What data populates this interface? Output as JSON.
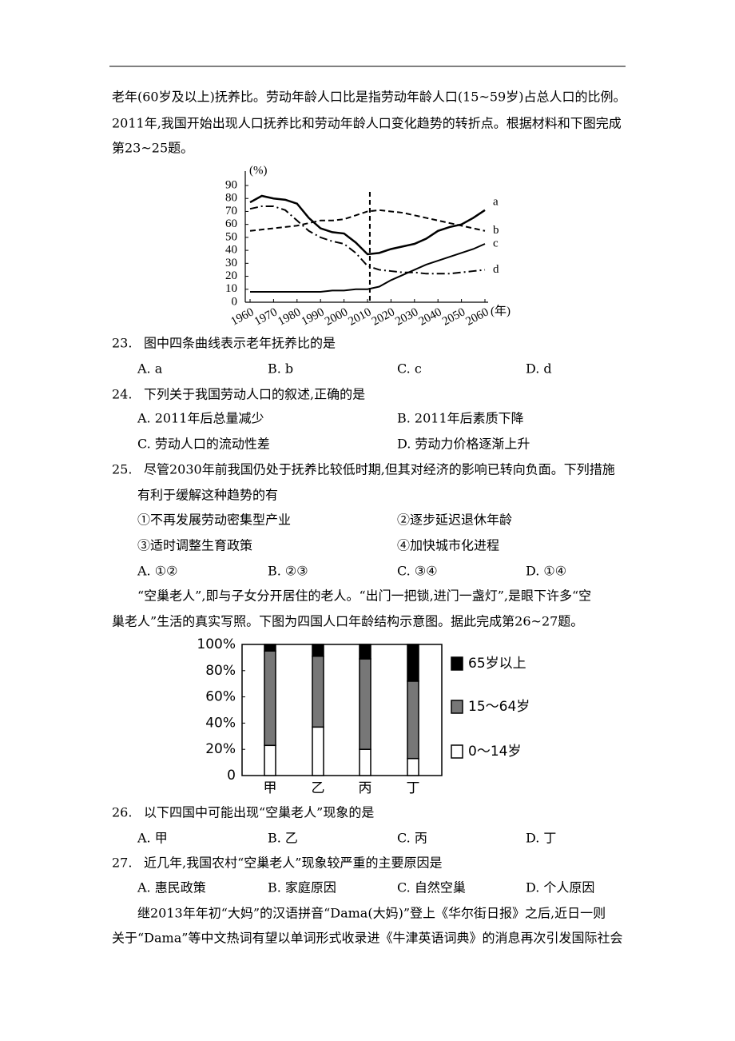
{
  "document": {
    "intro": [
      "老年(60岁及以上)抚养比。劳动年龄人口比是指劳动年龄人口(15~59岁)占总人口的比例。",
      "2011年,我国开始出现人口抚养比和劳动年龄人口变化趋势的转折点。根据材料和下图完成",
      "第23~25题。"
    ],
    "questions": [
      {
        "number": "23.",
        "text": [
          "图中四条曲线表示老年抚养比的是"
        ],
        "options": [
          "A. a",
          "B. b",
          "C. c",
          "D. d"
        ]
      },
      {
        "number": "24.",
        "text": [
          "下列关于我国劳动人口的叙述,正确的是"
        ],
        "options": [
          "A. 2011年后总量减少",
          "B. 2011年后素质下降",
          "C. 劳动人口的流动性差",
          "D. 劳动力价格逐渐上升"
        ]
      },
      {
        "number": "25.",
        "text": [
          "尽管2030年前我国仍处于抚养比较低时期,但其对经济的影响已转向负面。下列措施",
          "有利于缓解这种趋势的有"
        ],
        "items": [
          "①不再发展劳动密集型产业",
          "②逐步延迟退休年龄",
          "③适时调整生育政策",
          "④加快城市化进程"
        ],
        "options": [
          "A. ①②",
          "B. ②③",
          "C. ③④",
          "D. ①④"
        ]
      },
      {
        "number": "26.",
        "text": [
          "以下四国中可能出现“空巢老人”现象的是"
        ],
        "options": [
          "A. 甲",
          "B. 乙",
          "C. 丙",
          "D. 丁"
        ]
      },
      {
        "number": "27.",
        "text": [
          "近几年,我国农村“空巢老人”现象较严重的主要原因是"
        ],
        "options": [
          "A. 惠民政策",
          "B. 家庭原因",
          "C. 自然空巢",
          "D. 个人原因"
        ]
      }
    ],
    "intro2": [
      "“空巢老人”,即与子女分开居住的老人。“出门一把锁,进门一盏灯”,是眼下许多“空",
      "巢老人”生活的真实写照。下图为四国人口年龄结构示意图。据此完成第26~27题。"
    ],
    "outro": [
      "继2013年年初“大妈”的汉语拼音“Dama(大妈)”登上《华尔街日报》之后,近日一则",
      "关于“Dama”等中文热词有望以单词形式收录进《牛津英语词典》的消息再次引发国际社会"
    ]
  },
  "chart_data": [
    {
      "type": "line",
      "y_label": "(%)",
      "x_label": "(年)",
      "x": [
        1960,
        1965,
        1970,
        1975,
        1980,
        1985,
        1990,
        1995,
        2000,
        2005,
        2010,
        2015,
        2020,
        2025,
        2030,
        2035,
        2040,
        2045,
        2050,
        2055,
        2060
      ],
      "series": [
        {
          "name": "a",
          "color": "#000",
          "dash": "solid",
          "values": [
            77,
            82,
            80,
            79,
            76,
            65,
            57,
            54,
            53,
            46,
            37,
            38,
            41,
            43,
            45,
            49,
            55,
            58,
            60,
            65,
            71
          ]
        },
        {
          "name": "b",
          "color": "#000",
          "dash": "dashed",
          "values": [
            55,
            56,
            57,
            58,
            59,
            61,
            63,
            63,
            64,
            67,
            70,
            71,
            70,
            69,
            67,
            65,
            63,
            61,
            59,
            57,
            55
          ]
        },
        {
          "name": "c",
          "color": "#000",
          "dash": "solid",
          "values": [
            8,
            8,
            8,
            8,
            8,
            8,
            8,
            9,
            9,
            10,
            10,
            12,
            17,
            21,
            25,
            29,
            32,
            35,
            38,
            41,
            45
          ]
        },
        {
          "name": "d",
          "color": "#000",
          "dash": "dashdot",
          "values": [
            72,
            74,
            74,
            71,
            63,
            55,
            50,
            47,
            45,
            38,
            28,
            25,
            24,
            23,
            23,
            22,
            22,
            22,
            23,
            24,
            25
          ]
        }
      ],
      "vline_x": 2011,
      "xlim": [
        1960,
        2060
      ],
      "xticks": [
        1960,
        1970,
        1980,
        1990,
        2000,
        2010,
        2020,
        2030,
        2040,
        2050,
        2060
      ],
      "ylim": [
        0,
        90
      ],
      "yticks": [
        0,
        10,
        20,
        30,
        40,
        50,
        60,
        70,
        80,
        90
      ],
      "grid": false
    },
    {
      "type": "stacked_bar",
      "categories": [
        "甲",
        "乙",
        "丙",
        "丁"
      ],
      "series": [
        {
          "name": "0～14岁",
          "color": "#ffffff",
          "values": [
            23,
            37,
            20,
            13
          ]
        },
        {
          "name": "15～64岁",
          "color": "#777777",
          "values": [
            72,
            54,
            69,
            59
          ]
        },
        {
          "name": "65岁以上",
          "color": "#000000",
          "values": [
            5,
            9,
            11,
            28
          ]
        }
      ],
      "ylim": [
        0,
        100
      ],
      "yticks": [
        0,
        {
          "value": 20,
          "label": "20%"
        },
        {
          "value": 40,
          "label": "40%"
        },
        {
          "value": 60,
          "label": "60%"
        },
        {
          "value": 80,
          "label": "80%"
        },
        {
          "value": 100,
          "label": "100%"
        }
      ],
      "legend": "right",
      "grid": false
    }
  ]
}
